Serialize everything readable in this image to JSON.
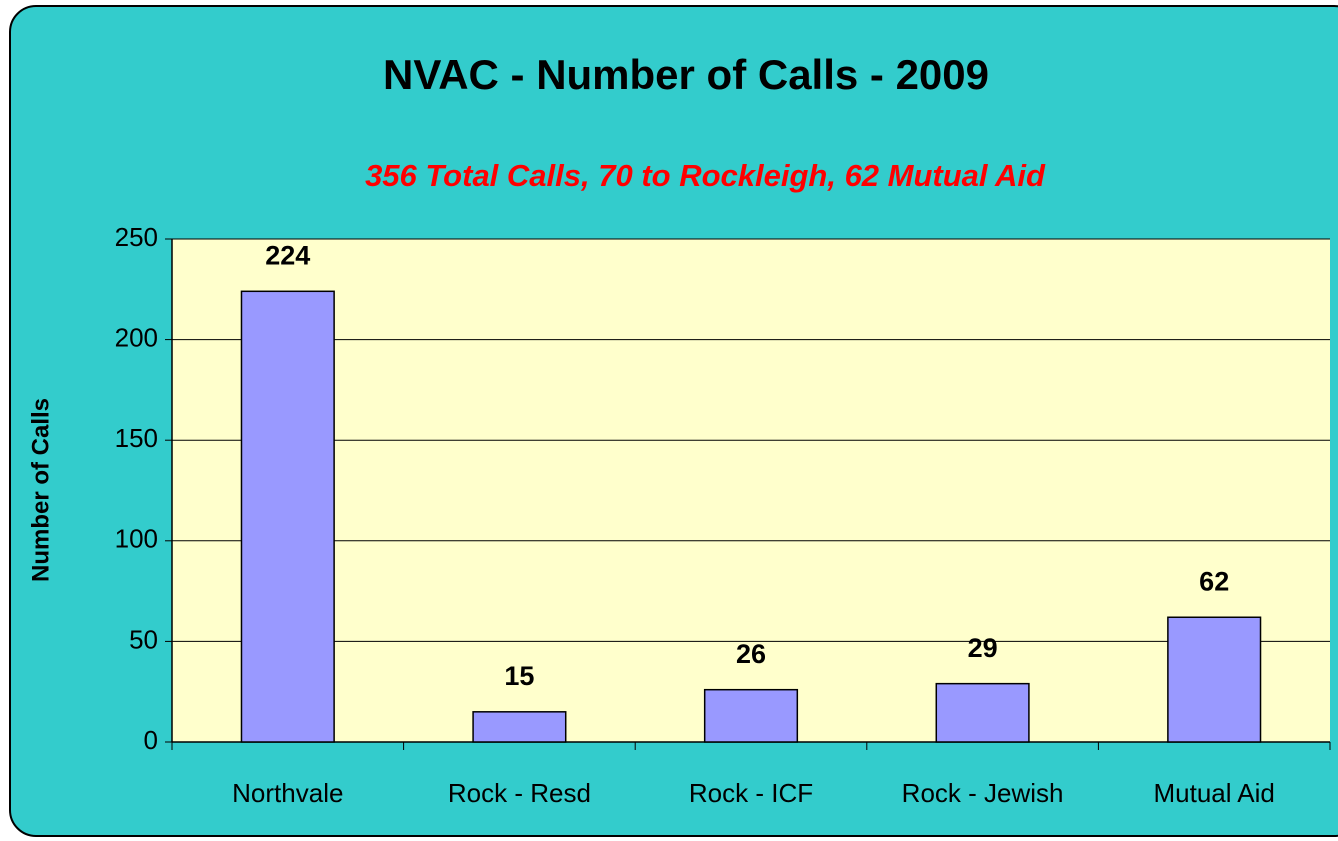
{
  "chart_data": {
    "type": "bar",
    "title": "NVAC - Number of Calls - 2009",
    "subtitle": "356 Total Calls, 70 to Rockleigh, 62 Mutual Aid",
    "y_label": "Number of Calls",
    "categories": [
      "Northvale",
      "Rock - Resd",
      "Rock - ICF",
      "Rock - Jewish",
      "Mutual Aid"
    ],
    "values": [
      224,
      15,
      26,
      29,
      62
    ],
    "color": "#9999ff",
    "ylim": [
      0,
      250
    ],
    "yticks": [
      0,
      50,
      100,
      150,
      200,
      250
    ],
    "grid": true
  }
}
